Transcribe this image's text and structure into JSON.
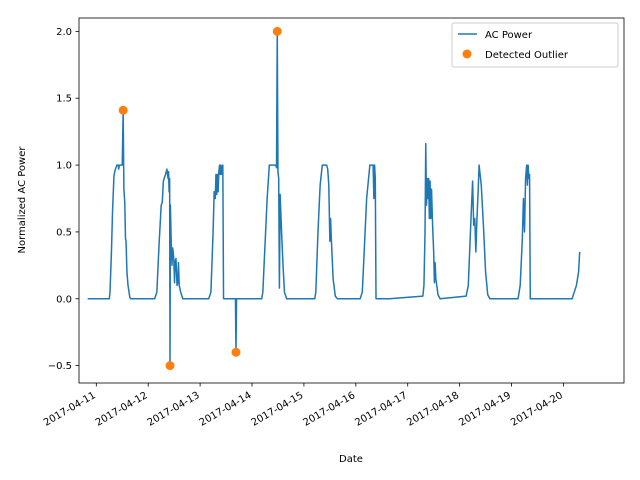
{
  "chart_data": {
    "type": "line",
    "xlabel": "Date",
    "ylabel": "Normalized AC Power",
    "xlim": [
      "2017-04-10T16:00",
      "2017-04-21T04:00"
    ],
    "ylim": [
      -0.63,
      2.1
    ],
    "x_ticks": [
      "2017-04-11",
      "2017-04-12",
      "2017-04-13",
      "2017-04-14",
      "2017-04-15",
      "2017-04-16",
      "2017-04-17",
      "2017-04-18",
      "2017-04-19",
      "2017-04-20"
    ],
    "y_ticks": [
      "−0.5",
      "0.0",
      "0.5",
      "1.0",
      "1.5",
      "2.0"
    ],
    "y_tick_values": [
      -0.5,
      0.0,
      0.5,
      1.0,
      1.5,
      2.0
    ],
    "legend": {
      "position": "top-right"
    },
    "series": [
      {
        "name": "AC Power",
        "kind": "line",
        "color": "#1f77b4",
        "points": [
          [
            "2017-04-10T20:00",
            0.0
          ],
          [
            "2017-04-11T06:00",
            0.0
          ],
          [
            "2017-04-11T06:20",
            0.05
          ],
          [
            "2017-04-11T07:00",
            0.35
          ],
          [
            "2017-04-11T07:30",
            0.65
          ],
          [
            "2017-04-11T08:10",
            0.92
          ],
          [
            "2017-04-11T08:40",
            0.96
          ],
          [
            "2017-04-11T09:30",
            1.0
          ],
          [
            "2017-04-11T10:10",
            1.0
          ],
          [
            "2017-04-11T10:20",
            0.97
          ],
          [
            "2017-04-11T10:40",
            1.0
          ],
          [
            "2017-04-11T11:00",
            1.0
          ],
          [
            "2017-04-11T12:00",
            1.0
          ],
          [
            "2017-04-11T12:25",
            1.41
          ],
          [
            "2017-04-11T12:45",
            0.82
          ],
          [
            "2017-04-11T13:10",
            0.72
          ],
          [
            "2017-04-11T13:30",
            0.45
          ],
          [
            "2017-04-11T13:45",
            0.43
          ],
          [
            "2017-04-11T14:10",
            0.2
          ],
          [
            "2017-04-11T14:40",
            0.1
          ],
          [
            "2017-04-11T15:30",
            0.01
          ],
          [
            "2017-04-11T16:00",
            0.0
          ],
          [
            "2017-04-12T03:00",
            0.0
          ],
          [
            "2017-04-12T04:00",
            0.05
          ],
          [
            "2017-04-12T05:00",
            0.4
          ],
          [
            "2017-04-12T06:00",
            0.7
          ],
          [
            "2017-04-12T06:30",
            0.72
          ],
          [
            "2017-04-12T07:00",
            0.88
          ],
          [
            "2017-04-12T08:00",
            0.93
          ],
          [
            "2017-04-12T08:40",
            0.97
          ],
          [
            "2017-04-12T09:10",
            0.9
          ],
          [
            "2017-04-12T09:25",
            0.95
          ],
          [
            "2017-04-12T09:40",
            0.8
          ],
          [
            "2017-04-12T09:55",
            0.9
          ],
          [
            "2017-04-12T10:05",
            -0.5
          ],
          [
            "2017-04-12T10:15",
            0.7
          ],
          [
            "2017-04-12T10:40",
            0.4
          ],
          [
            "2017-04-12T11:00",
            0.25
          ],
          [
            "2017-04-12T11:20",
            0.38
          ],
          [
            "2017-04-12T11:50",
            0.3
          ],
          [
            "2017-04-12T12:10",
            0.12
          ],
          [
            "2017-04-12T12:30",
            0.28
          ],
          [
            "2017-04-12T12:50",
            0.3
          ],
          [
            "2017-04-12T13:20",
            0.1
          ],
          [
            "2017-04-12T13:40",
            0.12
          ],
          [
            "2017-04-12T14:00",
            0.27
          ],
          [
            "2017-04-12T14:20",
            0.1
          ],
          [
            "2017-04-12T15:00",
            0.05
          ],
          [
            "2017-04-12T16:00",
            0.0
          ],
          [
            "2017-04-13T04:00",
            0.0
          ],
          [
            "2017-04-13T05:00",
            0.05
          ],
          [
            "2017-04-13T06:00",
            0.5
          ],
          [
            "2017-04-13T06:30",
            0.8
          ],
          [
            "2017-04-13T07:00",
            0.75
          ],
          [
            "2017-04-13T07:20",
            0.93
          ],
          [
            "2017-04-13T07:40",
            0.78
          ],
          [
            "2017-04-13T08:00",
            0.93
          ],
          [
            "2017-04-13T08:20",
            0.8
          ],
          [
            "2017-04-13T08:40",
            0.95
          ],
          [
            "2017-04-13T09:00",
            1.0
          ],
          [
            "2017-04-13T09:20",
            0.93
          ],
          [
            "2017-04-13T09:40",
            1.0
          ],
          [
            "2017-04-13T10:00",
            0.93
          ],
          [
            "2017-04-13T10:30",
            1.0
          ],
          [
            "2017-04-13T10:50",
            0.0
          ],
          [
            "2017-04-13T16:00",
            0.0
          ],
          [
            "2017-04-13T16:20",
            0.0
          ],
          [
            "2017-04-13T16:35",
            -0.4
          ],
          [
            "2017-04-13T16:50",
            0.0
          ],
          [
            "2017-04-14T04:30",
            0.0
          ],
          [
            "2017-04-14T05:00",
            0.05
          ],
          [
            "2017-04-14T06:00",
            0.4
          ],
          [
            "2017-04-14T07:00",
            0.75
          ],
          [
            "2017-04-14T08:00",
            1.0
          ],
          [
            "2017-04-14T09:30",
            1.0
          ],
          [
            "2017-04-14T10:30",
            1.0
          ],
          [
            "2017-04-14T11:00",
            1.0
          ],
          [
            "2017-04-14T11:20",
            0.98
          ],
          [
            "2017-04-14T11:40",
            2.0
          ],
          [
            "2017-04-14T12:00",
            0.95
          ],
          [
            "2017-04-14T12:20",
            0.9
          ],
          [
            "2017-04-14T12:40",
            0.08
          ],
          [
            "2017-04-14T13:00",
            0.78
          ],
          [
            "2017-04-14T13:40",
            0.5
          ],
          [
            "2017-04-14T14:20",
            0.25
          ],
          [
            "2017-04-14T15:00",
            0.05
          ],
          [
            "2017-04-14T16:00",
            0.0
          ],
          [
            "2017-04-15T05:00",
            0.0
          ],
          [
            "2017-04-15T05:30",
            0.05
          ],
          [
            "2017-04-15T06:30",
            0.5
          ],
          [
            "2017-04-15T07:30",
            0.85
          ],
          [
            "2017-04-15T08:30",
            1.0
          ],
          [
            "2017-04-15T10:30",
            1.0
          ],
          [
            "2017-04-15T11:00",
            0.97
          ],
          [
            "2017-04-15T11:30",
            0.85
          ],
          [
            "2017-04-15T12:00",
            0.43
          ],
          [
            "2017-04-15T12:20",
            0.6
          ],
          [
            "2017-04-15T12:40",
            0.45
          ],
          [
            "2017-04-15T13:30",
            0.15
          ],
          [
            "2017-04-15T14:30",
            0.02
          ],
          [
            "2017-04-15T15:30",
            0.0
          ],
          [
            "2017-04-16T02:00",
            0.0
          ],
          [
            "2017-04-16T03:00",
            0.05
          ],
          [
            "2017-04-16T04:00",
            0.4
          ],
          [
            "2017-04-16T05:00",
            0.75
          ],
          [
            "2017-04-16T06:30",
            1.0
          ],
          [
            "2017-04-16T08:00",
            1.0
          ],
          [
            "2017-04-16T08:20",
            0.75
          ],
          [
            "2017-04-16T08:40",
            1.0
          ],
          [
            "2017-04-16T09:00",
            0.9
          ],
          [
            "2017-04-16T09:20",
            0.0
          ],
          [
            "2017-04-16T15:30",
            0.0
          ],
          [
            "2017-04-17T07:00",
            0.02
          ],
          [
            "2017-04-17T07:30",
            0.1
          ],
          [
            "2017-04-17T08:00",
            0.5
          ],
          [
            "2017-04-17T08:20",
            1.16
          ],
          [
            "2017-04-17T08:40",
            0.7
          ],
          [
            "2017-04-17T09:00",
            0.9
          ],
          [
            "2017-04-17T09:20",
            0.75
          ],
          [
            "2017-04-17T09:40",
            0.9
          ],
          [
            "2017-04-17T10:00",
            0.6
          ],
          [
            "2017-04-17T10:20",
            0.88
          ],
          [
            "2017-04-17T10:40",
            0.6
          ],
          [
            "2017-04-17T11:00",
            0.82
          ],
          [
            "2017-04-17T11:30",
            0.55
          ],
          [
            "2017-04-17T12:00",
            0.35
          ],
          [
            "2017-04-17T12:20",
            0.12
          ],
          [
            "2017-04-17T12:40",
            0.27
          ],
          [
            "2017-04-17T13:00",
            0.15
          ],
          [
            "2017-04-17T14:00",
            0.03
          ],
          [
            "2017-04-17T15:00",
            0.0
          ],
          [
            "2017-04-18T03:00",
            0.02
          ],
          [
            "2017-04-18T04:00",
            0.1
          ],
          [
            "2017-04-18T05:00",
            0.5
          ],
          [
            "2017-04-18T06:00",
            0.88
          ],
          [
            "2017-04-18T06:30",
            0.55
          ],
          [
            "2017-04-18T07:00",
            0.6
          ],
          [
            "2017-04-18T07:30",
            0.35
          ],
          [
            "2017-04-18T08:00",
            0.6
          ],
          [
            "2017-04-18T08:30",
            0.78
          ],
          [
            "2017-04-18T09:00",
            1.0
          ],
          [
            "2017-04-18T10:00",
            0.85
          ],
          [
            "2017-04-18T11:00",
            0.55
          ],
          [
            "2017-04-18T12:00",
            0.2
          ],
          [
            "2017-04-18T13:00",
            0.03
          ],
          [
            "2017-04-18T14:00",
            0.0
          ],
          [
            "2017-04-19T03:00",
            0.0
          ],
          [
            "2017-04-19T04:00",
            0.1
          ],
          [
            "2017-04-19T05:00",
            0.45
          ],
          [
            "2017-04-19T05:30",
            0.75
          ],
          [
            "2017-04-19T06:00",
            0.5
          ],
          [
            "2017-04-19T06:30",
            0.9
          ],
          [
            "2017-04-19T07:00",
            1.0
          ],
          [
            "2017-04-19T07:20",
            0.85
          ],
          [
            "2017-04-19T07:40",
            1.0
          ],
          [
            "2017-04-19T08:00",
            0.9
          ],
          [
            "2017-04-19T08:20",
            0.93
          ],
          [
            "2017-04-19T08:40",
            0.0
          ],
          [
            "2017-04-20T04:00",
            0.0
          ],
          [
            "2017-04-20T05:00",
            0.05
          ],
          [
            "2017-04-20T06:00",
            0.1
          ],
          [
            "2017-04-20T07:00",
            0.2
          ],
          [
            "2017-04-20T07:30",
            0.35
          ]
        ]
      },
      {
        "name": "Detected Outlier",
        "kind": "scatter",
        "color": "#ff7f0e",
        "points": [
          [
            "2017-04-11T12:25",
            1.41
          ],
          [
            "2017-04-12T10:05",
            -0.5
          ],
          [
            "2017-04-13T16:35",
            -0.4
          ],
          [
            "2017-04-14T11:40",
            2.0
          ]
        ]
      }
    ]
  }
}
